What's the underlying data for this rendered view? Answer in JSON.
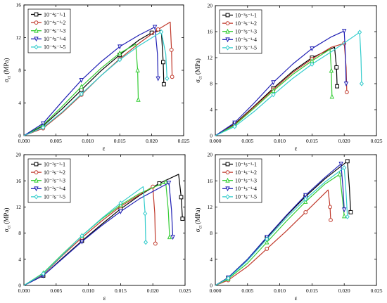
{
  "figure": {
    "panels": [
      {
        "xlabel": "ε",
        "ylabel": "σ",
        "ylabel_sub": "ct",
        "ylabel_unit": " (MPa)",
        "xticks": [
          "0.000",
          "0.005",
          "0.010",
          "0.015",
          "0.020",
          "0.025"
        ],
        "yticks": [
          "0",
          "4",
          "8",
          "12",
          "16"
        ],
        "legend": [
          "10⁻⁴s⁻¹-1",
          "10⁻⁴s⁻¹-2",
          "10⁻⁴s⁻¹-3",
          "10⁻⁴s⁻¹-4",
          "10⁻⁴s⁻¹-5"
        ]
      },
      {
        "xlabel": "ε",
        "ylabel": "σ",
        "ylabel_sub": "ct",
        "ylabel_unit": " (MPa)",
        "xticks": [
          "0.000",
          "0.005",
          "0.010",
          "0.015",
          "0.020",
          "0.025"
        ],
        "yticks": [
          "0",
          "4",
          "8",
          "12",
          "16",
          "20"
        ],
        "legend": [
          "10⁻³s⁻¹-1",
          "10⁻³s⁻¹-2",
          "10⁻³s⁻¹-3",
          "10⁻³s⁻¹-4",
          "10⁻³s⁻¹-5"
        ]
      },
      {
        "xlabel": "ε",
        "ylabel": "σ",
        "ylabel_sub": "ct",
        "ylabel_unit": " (MPa)",
        "xticks": [
          "0.000",
          "0.005",
          "0.010",
          "0.015",
          "0.020",
          "0.025"
        ],
        "yticks": [
          "0",
          "4",
          "8",
          "12",
          "16",
          "20"
        ],
        "legend": [
          "10⁻²s⁻¹-1",
          "10⁻²s⁻¹-2",
          "10⁻²s⁻¹-3",
          "10⁻²s⁻¹-4",
          "10⁻²s⁻¹-5"
        ]
      },
      {
        "xlabel": "ε",
        "ylabel": "σ",
        "ylabel_sub": "ct",
        "ylabel_unit": " (MPa)",
        "xticks": [
          "0.000",
          "0.005",
          "0.010",
          "0.015",
          "0.020",
          "0.025"
        ],
        "yticks": [
          "0",
          "4",
          "8",
          "12",
          "16",
          "20"
        ],
        "legend": [
          "10⁻¹s⁻¹-1",
          "10⁻¹s⁻¹-2",
          "10⁻¹s⁻¹-3",
          "10⁻¹s⁻¹-4",
          "10⁻¹s⁻¹-5"
        ]
      }
    ]
  },
  "chart_data": [
    {
      "type": "line",
      "xlim": [
        0,
        0.025
      ],
      "ylim": [
        0,
        16
      ],
      "grid": false,
      "legend_position": "top-left",
      "series": [
        {
          "name": "10⁻⁴s⁻¹-1",
          "color": "#000000",
          "marker": "square",
          "x": [
            0,
            0.003,
            0.006,
            0.009,
            0.012,
            0.015,
            0.018,
            0.02,
            0.0215,
            0.0218,
            0.0219
          ],
          "y": [
            0,
            1.2,
            3.3,
            5.6,
            7.9,
            9.9,
            11.7,
            12.6,
            12.9,
            9.0,
            6.3
          ]
        },
        {
          "name": "10⁻⁴s⁻¹-2",
          "color": "#c0392b",
          "marker": "circle",
          "x": [
            0,
            0.003,
            0.006,
            0.009,
            0.012,
            0.015,
            0.018,
            0.021,
            0.0229,
            0.0231,
            0.0232
          ],
          "y": [
            0,
            0.9,
            2.8,
            5.0,
            7.3,
            9.4,
            11.3,
            13.0,
            13.9,
            10.5,
            7.2
          ]
        },
        {
          "name": "10⁻⁴s⁻¹-3",
          "color": "#33cc33",
          "marker": "triangle",
          "x": [
            0,
            0.003,
            0.006,
            0.009,
            0.012,
            0.015,
            0.0175,
            0.0178,
            0.0179
          ],
          "y": [
            0,
            1.3,
            3.6,
            6.0,
            8.2,
            10.1,
            11.2,
            8.0,
            4.4
          ]
        },
        {
          "name": "10⁻⁴s⁻¹-4",
          "color": "#1f1fb4",
          "marker": "triangle-down",
          "x": [
            0,
            0.003,
            0.006,
            0.009,
            0.012,
            0.015,
            0.018,
            0.0205,
            0.0209,
            0.021
          ],
          "y": [
            0,
            1.5,
            4.2,
            6.8,
            9.0,
            10.9,
            12.3,
            13.3,
            10.0,
            7.0
          ]
        },
        {
          "name": "10⁻⁴s⁻¹-5",
          "color": "#33cccc",
          "marker": "diamond",
          "x": [
            0,
            0.003,
            0.006,
            0.009,
            0.012,
            0.015,
            0.018,
            0.0215,
            0.0222,
            0.0224
          ],
          "y": [
            0,
            1.0,
            2.9,
            5.1,
            7.3,
            9.3,
            11.0,
            12.7,
            10.0,
            7.0
          ]
        }
      ]
    },
    {
      "type": "line",
      "xlim": [
        0,
        0.025
      ],
      "ylim": [
        0,
        20
      ],
      "grid": false,
      "legend_position": "top-left",
      "series": [
        {
          "name": "10⁻³s⁻¹-1",
          "color": "#000000",
          "marker": "square",
          "x": [
            0,
            0.003,
            0.006,
            0.009,
            0.012,
            0.015,
            0.0185,
            0.0188,
            0.0189
          ],
          "y": [
            0,
            1.8,
            4.5,
            7.3,
            9.9,
            12.0,
            13.6,
            10.5,
            7.6
          ]
        },
        {
          "name": "10⁻³s⁻¹-2",
          "color": "#c0392b",
          "marker": "circle",
          "x": [
            0,
            0.003,
            0.006,
            0.009,
            0.012,
            0.015,
            0.018,
            0.02,
            0.0203,
            0.0204
          ],
          "y": [
            0,
            1.7,
            4.4,
            7.1,
            9.7,
            11.8,
            13.6,
            14.2,
            10.5,
            6.7
          ]
        },
        {
          "name": "10⁻³s⁻¹-3",
          "color": "#33cc33",
          "marker": "triangle",
          "x": [
            0,
            0.003,
            0.006,
            0.009,
            0.012,
            0.015,
            0.0178,
            0.018,
            0.0181
          ],
          "y": [
            0,
            1.6,
            4.2,
            6.9,
            9.4,
            11.5,
            13.3,
            10.0,
            6.0
          ]
        },
        {
          "name": "10⁻³s⁻¹-4",
          "color": "#1f1fb4",
          "marker": "triangle-down",
          "x": [
            0,
            0.003,
            0.006,
            0.009,
            0.012,
            0.015,
            0.018,
            0.02,
            0.0202,
            0.0203
          ],
          "y": [
            0,
            2.0,
            5.0,
            8.2,
            11.0,
            13.4,
            15.2,
            16.1,
            12.0,
            8.0
          ]
        },
        {
          "name": "10⁻³s⁻¹-5",
          "color": "#33cccc",
          "marker": "diamond",
          "x": [
            0,
            0.003,
            0.006,
            0.009,
            0.012,
            0.015,
            0.018,
            0.0224,
            0.0226,
            0.0227
          ],
          "y": [
            0,
            1.4,
            3.7,
            6.3,
            8.8,
            11.0,
            12.9,
            15.9,
            12.0,
            8.0
          ]
        }
      ]
    },
    {
      "type": "line",
      "xlim": [
        0,
        0.025
      ],
      "ylim": [
        0,
        20
      ],
      "grid": false,
      "legend_position": "top-left",
      "series": [
        {
          "name": "10⁻²s⁻¹-1",
          "color": "#000000",
          "marker": "square",
          "x": [
            0,
            0.003,
            0.006,
            0.009,
            0.012,
            0.015,
            0.018,
            0.021,
            0.024,
            0.0244,
            0.0246
          ],
          "y": [
            0,
            1.5,
            4.2,
            6.8,
            9.3,
            11.7,
            13.8,
            15.6,
            17.0,
            13.5,
            10.2
          ]
        },
        {
          "name": "10⁻²s⁻¹-2",
          "color": "#c0392b",
          "marker": "circle",
          "x": [
            0,
            0.003,
            0.006,
            0.009,
            0.012,
            0.015,
            0.0185,
            0.02,
            0.0203,
            0.0204
          ],
          "y": [
            0,
            1.7,
            4.6,
            7.3,
            9.8,
            12.1,
            14.2,
            15.1,
            11.0,
            6.4
          ]
        },
        {
          "name": "10⁻²s⁻¹-3",
          "color": "#33cc33",
          "marker": "triangle",
          "x": [
            0,
            0.003,
            0.006,
            0.009,
            0.012,
            0.015,
            0.018,
            0.022,
            0.0224,
            0.0226
          ],
          "y": [
            0,
            1.9,
            4.8,
            7.6,
            10.1,
            12.3,
            14.1,
            15.8,
            11.5,
            7.4
          ]
        },
        {
          "name": "10⁻²s⁻¹-4",
          "color": "#1f1fb4",
          "marker": "triangle-down",
          "x": [
            0,
            0.003,
            0.006,
            0.009,
            0.012,
            0.015,
            0.018,
            0.0225,
            0.0229,
            0.0231
          ],
          "y": [
            0,
            1.5,
            4.1,
            6.7,
            9.1,
            11.3,
            13.3,
            15.7,
            11.5,
            7.4
          ]
        },
        {
          "name": "10⁻²s⁻¹-5",
          "color": "#33cccc",
          "marker": "diamond",
          "x": [
            0,
            0.003,
            0.006,
            0.009,
            0.012,
            0.015,
            0.0185,
            0.0188,
            0.0189
          ],
          "y": [
            0,
            1.8,
            4.7,
            7.6,
            10.2,
            12.6,
            15.1,
            11.0,
            6.6
          ]
        }
      ]
    },
    {
      "type": "line",
      "xlim": [
        0,
        0.025
      ],
      "ylim": [
        0,
        20
      ],
      "grid": false,
      "legend_position": "top-left",
      "series": [
        {
          "name": "10⁻¹s⁻¹-1",
          "color": "#000000",
          "marker": "square",
          "x": [
            0,
            0.002,
            0.005,
            0.008,
            0.011,
            0.014,
            0.017,
            0.0205,
            0.0208,
            0.021
          ],
          "y": [
            0,
            1.2,
            4.0,
            7.3,
            10.6,
            13.6,
            16.3,
            19.0,
            15.0,
            11.2
          ]
        },
        {
          "name": "10⁻¹s⁻¹-2",
          "color": "#c0392b",
          "marker": "circle",
          "x": [
            0,
            0.002,
            0.005,
            0.008,
            0.011,
            0.014,
            0.0175,
            0.0178,
            0.0179
          ],
          "y": [
            0,
            0.8,
            2.9,
            5.6,
            8.3,
            11.2,
            14.6,
            12.0,
            10.0
          ]
        },
        {
          "name": "10⁻¹s⁻¹-3",
          "color": "#33cc33",
          "marker": "triangle",
          "x": [
            0,
            0.002,
            0.005,
            0.008,
            0.011,
            0.014,
            0.017,
            0.0193,
            0.0197,
            0.02
          ],
          "y": [
            0,
            1.0,
            3.4,
            6.6,
            9.8,
            12.8,
            15.5,
            17.0,
            13.5,
            10.6
          ]
        },
        {
          "name": "10⁻¹s⁻¹-4",
          "color": "#1f1fb4",
          "marker": "triangle-down",
          "x": [
            0,
            0.002,
            0.005,
            0.008,
            0.011,
            0.014,
            0.017,
            0.0195,
            0.0198,
            0.02
          ],
          "y": [
            0,
            1.2,
            4.0,
            7.4,
            10.7,
            13.8,
            16.5,
            18.6,
            15.0,
            11.6
          ]
        },
        {
          "name": "10⁻¹s⁻¹-5",
          "color": "#33cccc",
          "marker": "diamond",
          "x": [
            0,
            0.002,
            0.005,
            0.008,
            0.011,
            0.014,
            0.017,
            0.02,
            0.0203,
            0.0205
          ],
          "y": [
            0,
            1.1,
            3.8,
            7.1,
            10.3,
            13.2,
            15.8,
            18.0,
            14.0,
            10.5
          ]
        }
      ]
    }
  ]
}
